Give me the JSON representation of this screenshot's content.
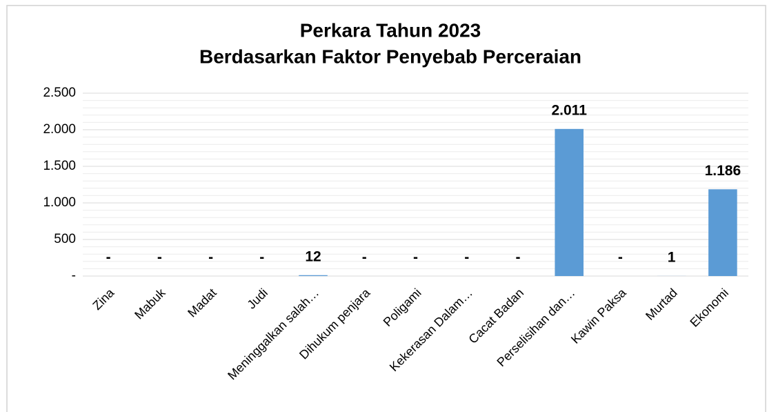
{
  "chart_data": {
    "type": "bar",
    "title": "Perkara Tahun 2023",
    "subtitle": "Berdasarkan Faktor Penyebab Perceraian",
    "categories": [
      "Zina",
      "Mabuk",
      "Madat",
      "Judi",
      "Meninggalkan salah…",
      "Dihukum penjara",
      "Poligami",
      "Kekerasan Dalam…",
      "Cacat Badan",
      "Perselisihan dan…",
      "Kawin Paksa",
      "Murtad",
      "Ekonomi"
    ],
    "values": [
      0,
      0,
      0,
      0,
      12,
      0,
      0,
      0,
      0,
      2011,
      0,
      1,
      1186
    ],
    "value_labels": [
      "-",
      "-",
      "-",
      "-",
      "12",
      "-",
      "-",
      "-",
      "-",
      "2.011",
      "-",
      "1",
      "1.186"
    ],
    "color": "#5b9bd5",
    "ylim": [
      0,
      2500
    ],
    "yticks": [
      {
        "value": 0,
        "label": "-"
      },
      500,
      {
        "value": 1000,
        "label": "1.000"
      },
      {
        "value": 1500,
        "label": "1.500"
      },
      {
        "value": 2000,
        "label": "2.000"
      },
      {
        "value": 2500,
        "label": "2.500"
      }
    ],
    "grid": true,
    "minor_grid": true
  }
}
